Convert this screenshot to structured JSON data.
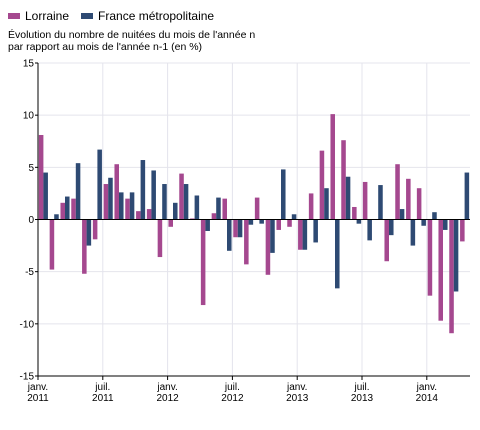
{
  "chart_data": {
    "type": "bar",
    "subtitle_lines": [
      "Évolution du nombre de nuitées du mois de l'année n",
      "par rapport au mois de l'année n-1 (en %)"
    ],
    "ylim": [
      -15,
      15
    ],
    "yticks": [
      15,
      10,
      5,
      0,
      -5,
      -10,
      -15
    ],
    "grid": true,
    "legend_position": "top-left",
    "x_tick_labels": [
      {
        "index": 0,
        "line1": "janv.",
        "line2": "2011"
      },
      {
        "index": 6,
        "line1": "juil.",
        "line2": "2011"
      },
      {
        "index": 12,
        "line1": "janv.",
        "line2": "2012"
      },
      {
        "index": 18,
        "line1": "juil.",
        "line2": "2012"
      },
      {
        "index": 24,
        "line1": "janv.",
        "line2": "2013"
      },
      {
        "index": 30,
        "line1": "juil.",
        "line2": "2013"
      },
      {
        "index": 36,
        "line1": "janv.",
        "line2": "2014"
      }
    ],
    "categories": [
      "2011-01",
      "2011-02",
      "2011-03",
      "2011-04",
      "2011-05",
      "2011-06",
      "2011-07",
      "2011-08",
      "2011-09",
      "2011-10",
      "2011-11",
      "2011-12",
      "2012-01",
      "2012-02",
      "2012-03",
      "2012-04",
      "2012-05",
      "2012-06",
      "2012-07",
      "2012-08",
      "2012-09",
      "2012-10",
      "2012-11",
      "2012-12",
      "2013-01",
      "2013-02",
      "2013-03",
      "2013-04",
      "2013-05",
      "2013-06",
      "2013-07",
      "2013-08",
      "2013-09",
      "2013-10",
      "2013-11",
      "2013-12",
      "2014-01",
      "2014-02",
      "2014-03",
      "2014-04"
    ],
    "series": [
      {
        "name": "Lorraine",
        "color": "#a5488f",
        "values": [
          8.1,
          -4.8,
          1.6,
          2.0,
          -5.2,
          -1.9,
          3.4,
          5.3,
          2.0,
          0.8,
          1.0,
          -3.6,
          -0.7,
          4.4,
          0.1,
          -8.2,
          0.6,
          2.0,
          -1.7,
          -4.3,
          2.1,
          -5.3,
          -1.0,
          -0.7,
          -2.9,
          2.5,
          6.6,
          10.1,
          7.6,
          1.2,
          3.6,
          0.0,
          -4.0,
          5.3,
          3.9,
          3.0,
          -7.3,
          -9.7,
          -10.9,
          -2.1
        ]
      },
      {
        "name": "France métropolitaine",
        "color": "#2e4a73",
        "values": [
          4.5,
          0.5,
          2.2,
          5.4,
          -2.5,
          6.7,
          4.0,
          2.6,
          2.6,
          5.7,
          4.7,
          3.4,
          1.6,
          3.4,
          2.3,
          -1.1,
          2.1,
          -3.0,
          -1.7,
          -0.5,
          -0.4,
          -3.2,
          4.8,
          0.5,
          -2.9,
          -2.2,
          3.0,
          -6.6,
          4.1,
          -0.4,
          -2.0,
          3.3,
          -1.5,
          1.0,
          -2.5,
          -0.6,
          0.7,
          -1.0,
          -6.9,
          4.5
        ]
      }
    ]
  }
}
